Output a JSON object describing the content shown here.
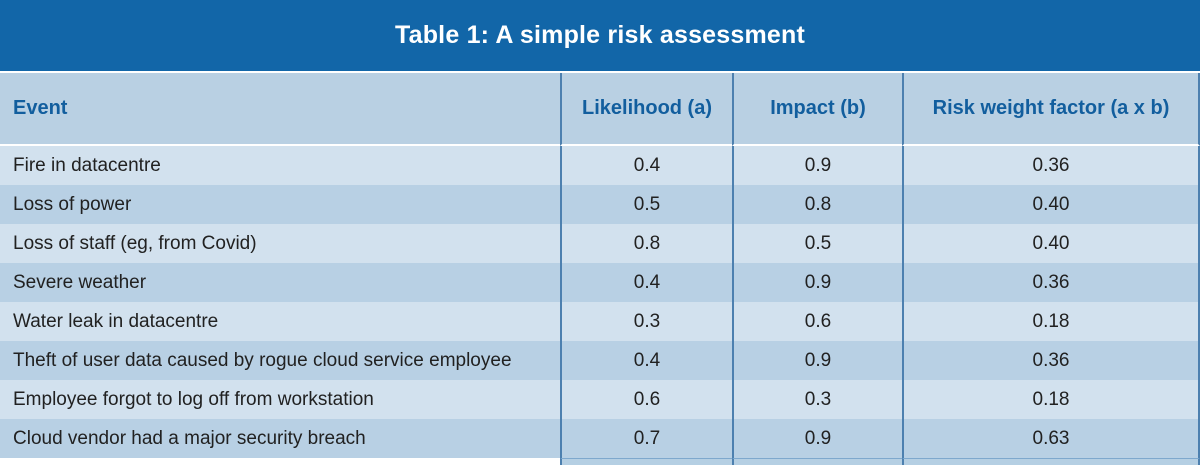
{
  "title": "Table 1: A simple risk assessment",
  "columns": {
    "event": "Event",
    "likelihood": "Likelihood (a)",
    "impact": "Impact (b)",
    "risk": "Risk weight factor (a x b)"
  },
  "rows": [
    {
      "event": "Fire in datacentre",
      "likelihood": "0.4",
      "impact": "0.9",
      "risk": "0.36"
    },
    {
      "event": "Loss of power",
      "likelihood": "0.5",
      "impact": "0.8",
      "risk": "0.40"
    },
    {
      "event": "Loss of staff (eg, from Covid)",
      "likelihood": "0.8",
      "impact": "0.5",
      "risk": "0.40"
    },
    {
      "event": "Severe weather",
      "likelihood": "0.4",
      "impact": "0.9",
      "risk": "0.36"
    },
    {
      "event": "Water leak in datacentre",
      "likelihood": "0.3",
      "impact": "0.6",
      "risk": "0.18"
    },
    {
      "event": "Theft of user data caused by rogue cloud service employee",
      "likelihood": "0.4",
      "impact": "0.9",
      "risk": "0.36"
    },
    {
      "event": "Employee forgot to log off from workstation",
      "likelihood": "0.6",
      "impact": "0.3",
      "risk": "0.18"
    },
    {
      "event": "Cloud vendor had a major security breach",
      "likelihood": "0.7",
      "impact": "0.9",
      "risk": "0.63"
    }
  ],
  "colors": {
    "title_bar": "#1266a8",
    "title_text": "#ffffff",
    "header_bg": "#b9d0e3",
    "header_text": "#125e9e",
    "row_light": "#d2e1ee",
    "row_dark": "#b8d0e4",
    "divider": "#4d80af",
    "body_text": "#212121"
  },
  "chart_data": {
    "type": "table",
    "title": "Table 1: A simple risk assessment",
    "columns": [
      "Event",
      "Likelihood (a)",
      "Impact (b)",
      "Risk weight factor (a x b)"
    ],
    "rows": [
      [
        "Fire in datacentre",
        0.4,
        0.9,
        0.36
      ],
      [
        "Loss of power",
        0.5,
        0.8,
        0.4
      ],
      [
        "Loss of staff (eg, from Covid)",
        0.8,
        0.5,
        0.4
      ],
      [
        "Severe weather",
        0.4,
        0.9,
        0.36
      ],
      [
        "Water leak in datacentre",
        0.3,
        0.6,
        0.18
      ],
      [
        "Theft of user data caused by rogue cloud service employee",
        0.4,
        0.9,
        0.36
      ],
      [
        "Employee forgot to log off from workstation",
        0.6,
        0.3,
        0.18
      ],
      [
        "Cloud vendor had a major security breach",
        0.7,
        0.9,
        0.63
      ]
    ]
  }
}
